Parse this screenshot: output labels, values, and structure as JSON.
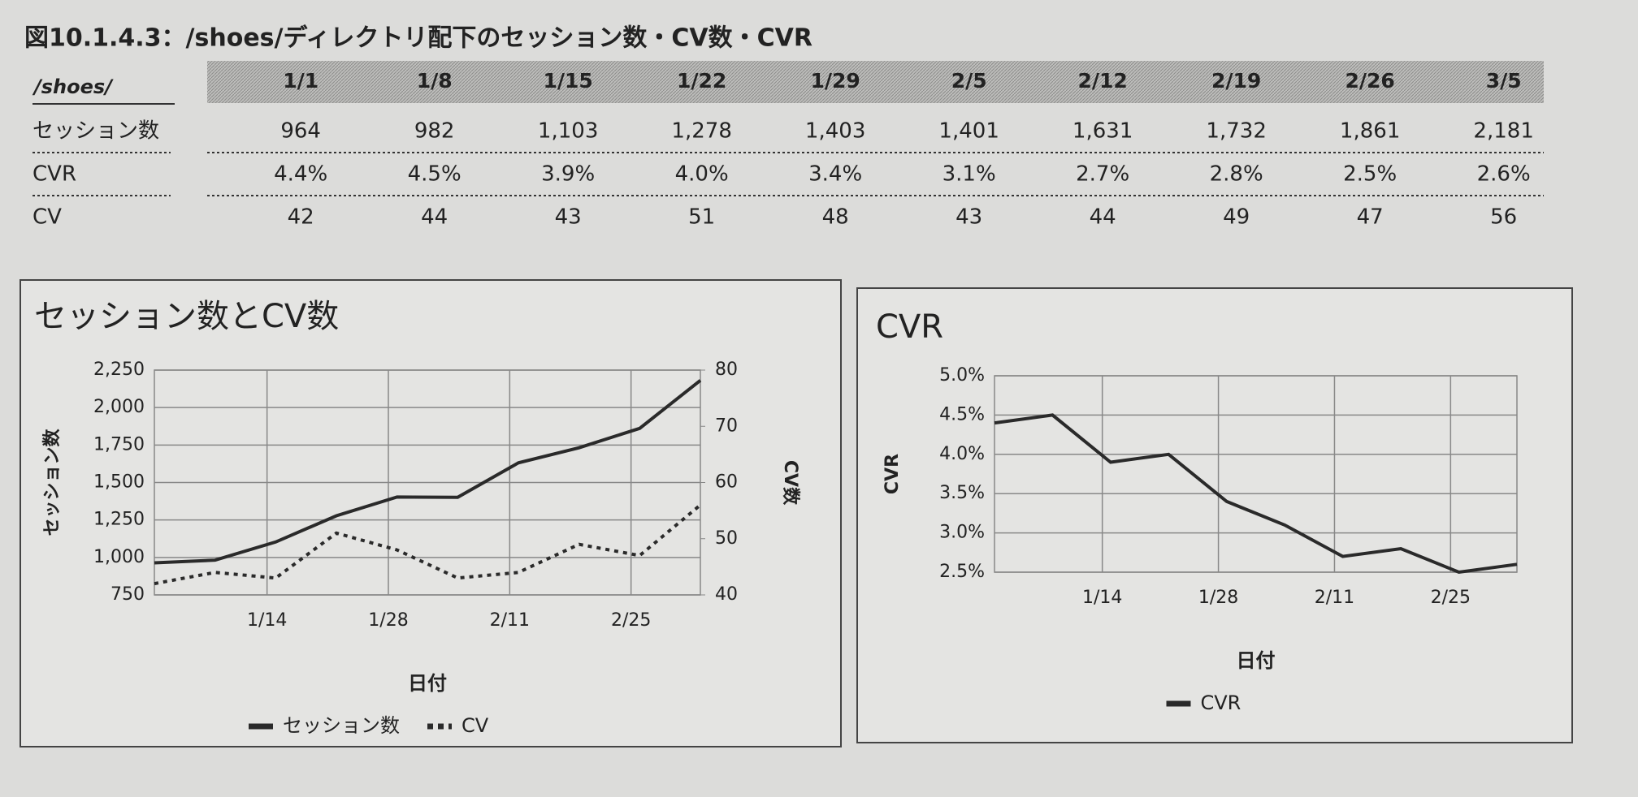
{
  "title": "図10.1.4.3：/shoes/ディレクトリ配下のセッション数・CV数・CVR",
  "table": {
    "corner": "/shoes/",
    "columns": [
      "1/1",
      "1/8",
      "1/15",
      "1/22",
      "1/29",
      "2/5",
      "2/12",
      "2/19",
      "2/26",
      "3/5"
    ],
    "rows": [
      {
        "label": "セッション数",
        "cells": [
          "964",
          "982",
          "1,103",
          "1,278",
          "1,403",
          "1,401",
          "1,631",
          "1,732",
          "1,861",
          "2,181"
        ]
      },
      {
        "label": "CVR",
        "cells": [
          "4.4%",
          "4.5%",
          "3.9%",
          "4.0%",
          "3.4%",
          "3.1%",
          "2.7%",
          "2.8%",
          "2.5%",
          "2.6%"
        ]
      },
      {
        "label": "CV",
        "cells": [
          "42",
          "44",
          "43",
          "51",
          "48",
          "43",
          "44",
          "49",
          "47",
          "56"
        ]
      }
    ]
  },
  "chart_data": [
    {
      "type": "line",
      "title": "セッション数とCV数",
      "xlabel": "日付",
      "ylabel": "セッション数",
      "y2label": "CV数",
      "x": [
        "1/1",
        "1/8",
        "1/15",
        "1/22",
        "1/29",
        "2/5",
        "2/12",
        "2/19",
        "2/26",
        "3/5"
      ],
      "xticks": [
        "1/14",
        "1/28",
        "2/11",
        "2/25"
      ],
      "ylim": [
        750,
        2250
      ],
      "yticks": [
        750,
        {
          "value": 1000,
          "label": "1,000"
        },
        {
          "value": 1250,
          "label": "1,250"
        },
        {
          "value": 1500,
          "label": "1,500"
        },
        {
          "value": 1750,
          "label": "1,750"
        },
        {
          "value": 2000,
          "label": "2,000"
        },
        {
          "value": 2250,
          "label": "2,250"
        }
      ],
      "y2lim": [
        40,
        80
      ],
      "y2ticks": [
        40,
        50,
        60,
        70,
        80
      ],
      "grid": true,
      "legend": "bottom",
      "series": [
        {
          "name": "セッション数",
          "color": "#2a2a2a",
          "style": "solid",
          "values": [
            964,
            982,
            1103,
            1278,
            1403,
            1401,
            1631,
            1732,
            1861,
            2181
          ]
        },
        {
          "name": "CV",
          "color": "#2a2a2a",
          "style": "dotted",
          "axis": "y2",
          "values": [
            42,
            44,
            43,
            51,
            48,
            43,
            44,
            49,
            47,
            56
          ]
        }
      ]
    },
    {
      "type": "line",
      "title": "CVR",
      "xlabel": "日付",
      "ylabel": "CVR",
      "x": [
        "1/1",
        "1/8",
        "1/15",
        "1/22",
        "1/29",
        "2/5",
        "2/12",
        "2/19",
        "2/26",
        "3/5"
      ],
      "xticks": [
        "1/14",
        "1/28",
        "2/11",
        "2/25"
      ],
      "ylim": [
        2.5,
        5.0
      ],
      "yticks": [
        {
          "value": 2.5,
          "label": "2.5%"
        },
        {
          "value": 3.0,
          "label": "3.0%"
        },
        {
          "value": 3.5,
          "label": "3.5%"
        },
        {
          "value": 4.0,
          "label": "4.0%"
        },
        {
          "value": 4.5,
          "label": "4.5%"
        },
        {
          "value": 5.0,
          "label": "5.0%"
        }
      ],
      "grid": true,
      "legend": "bottom",
      "series": [
        {
          "name": "CVR",
          "color": "#2a2a2a",
          "style": "solid",
          "values": [
            4.4,
            4.5,
            3.9,
            4.0,
            3.4,
            3.1,
            2.7,
            2.8,
            2.5,
            2.6
          ]
        }
      ]
    }
  ]
}
